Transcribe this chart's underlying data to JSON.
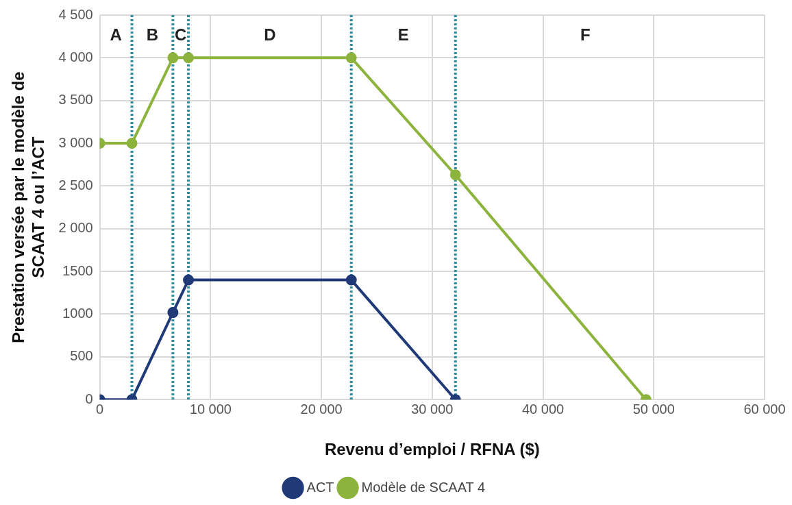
{
  "chart_data": {
    "type": "line",
    "xlabel": "Revenu d’emploi / RFNA ($)",
    "ylabel": "Prestation versée par le modèle de SCAAT 4 ou l’ACT",
    "series": [
      {
        "name": "ACT",
        "color": "#203a78",
        "x": [
          0,
          2900,
          6600,
          8000,
          22700,
          32100
        ],
        "values": [
          0,
          0,
          1020,
          1400,
          1400,
          0
        ]
      },
      {
        "name": "Modèle de SCAAT 4",
        "color": "#8cb43c",
        "x": [
          0,
          2900,
          6600,
          8000,
          22700,
          32100,
          49300
        ],
        "values": [
          3000,
          3000,
          4000,
          4000,
          4000,
          2630,
          0
        ]
      }
    ],
    "xlim": [
      0,
      60000
    ],
    "xticks": [
      0,
      {
        "value": 10000,
        "label": "10 000"
      },
      {
        "value": 20000,
        "label": "20 000"
      },
      {
        "value": 30000,
        "label": "30 000"
      },
      {
        "value": 40000,
        "label": "40 000"
      },
      {
        "value": 50000,
        "label": "50 000"
      },
      {
        "value": 60000,
        "label": "60 000"
      }
    ],
    "ylim": [
      0,
      4500
    ],
    "yticks": [
      0,
      500,
      {
        "value": 1000,
        "label": "1000"
      },
      {
        "value": 1500,
        "label": "1500"
      },
      {
        "value": 2000,
        "label": "2 000"
      },
      {
        "value": 2500,
        "label": "2 500"
      },
      {
        "value": 3000,
        "label": "3 000"
      },
      {
        "value": 3500,
        "label": "3 500"
      },
      {
        "value": 4000,
        "label": "4 000"
      },
      {
        "value": 4500,
        "label": "4 500"
      }
    ],
    "ref_lines": [
      {
        "axis": "x",
        "value": 2900,
        "color": "#2f8c9c",
        "line_style": "dotted"
      },
      {
        "axis": "x",
        "value": 6600,
        "color": "#2f8c9c",
        "line_style": "dotted"
      },
      {
        "axis": "x",
        "value": 8000,
        "color": "#2f8c9c",
        "line_style": "dotted"
      },
      {
        "axis": "x",
        "value": 22700,
        "color": "#2f8c9c",
        "line_style": "dotted"
      },
      {
        "axis": "x",
        "value": 32100,
        "color": "#2f8c9c",
        "line_style": "dotted"
      }
    ],
    "annotations": [
      "A",
      "B",
      "C",
      "D",
      "E",
      "F"
    ],
    "grid": true,
    "legend": "bottom",
    "marker": "circle",
    "line_style": "solid"
  }
}
